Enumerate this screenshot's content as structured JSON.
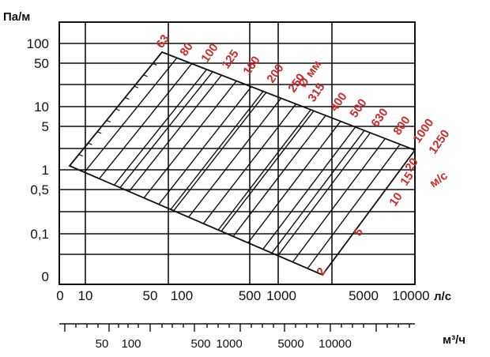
{
  "chart_data": {
    "type": "nomogram",
    "title": "",
    "y_unit": "Па/м",
    "x_unit": "л/с",
    "x2_unit": "м³/ч",
    "y_ticks": [
      "100",
      "50",
      "10",
      "5",
      "1",
      "0,5",
      "0,1",
      "0"
    ],
    "x_ticks": [
      "0",
      "10",
      "50",
      "100",
      "500",
      "1000",
      "5000",
      "10000"
    ],
    "x2_ticks": [
      "50",
      "100",
      "500",
      "1000",
      "5000",
      "10000"
    ],
    "diameter_unit": "Ø мм",
    "diameters": [
      "63",
      "80",
      "100",
      "125",
      "160",
      "200",
      "250",
      "315",
      "400",
      "500",
      "630",
      "800",
      "1000",
      "1250"
    ],
    "velocity_unit": "м/с",
    "velocities": [
      "20",
      "15",
      "10",
      "5",
      "2"
    ],
    "colors": {
      "grid": "#111111",
      "labels": "#cc2b2b"
    }
  }
}
